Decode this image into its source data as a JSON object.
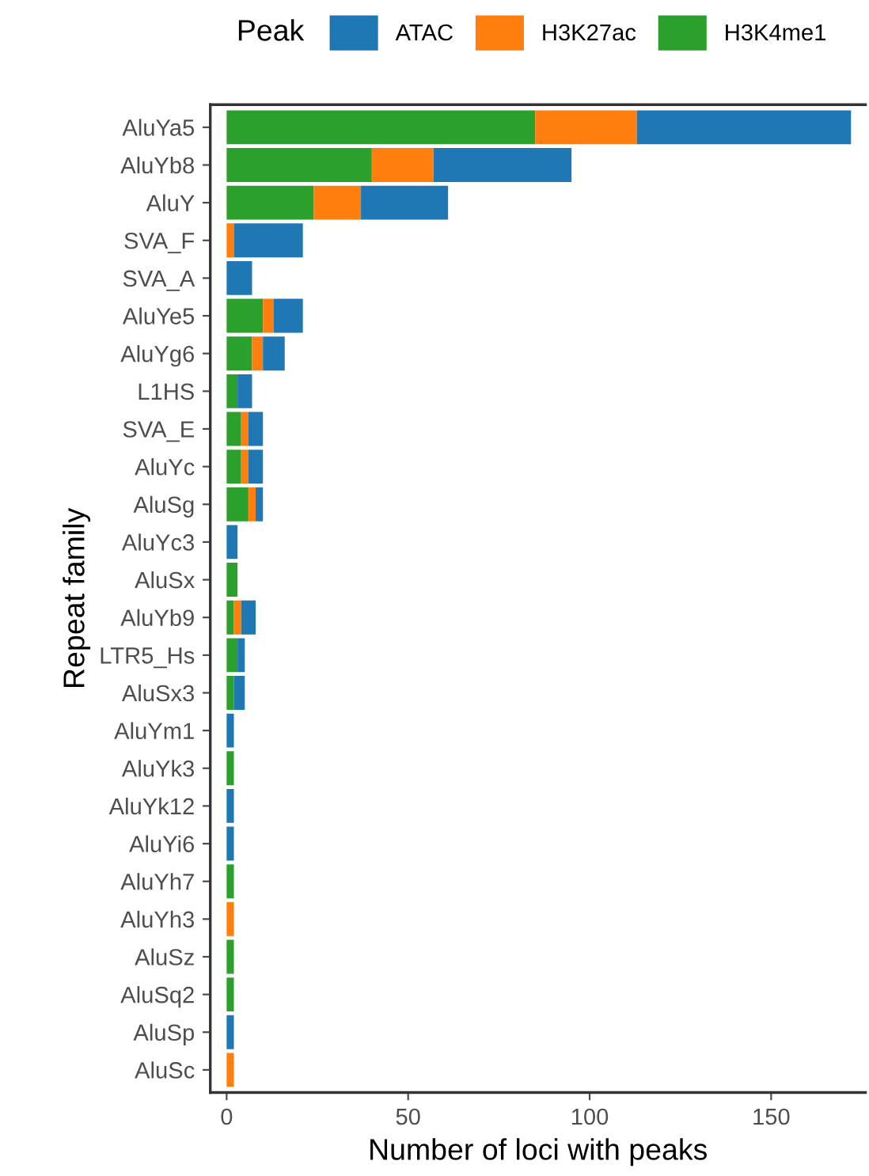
{
  "chart_data": {
    "type": "bar",
    "orientation": "horizontal",
    "stacked": true,
    "xlabel": "Number of loci with peaks",
    "ylabel": "Repeat family",
    "legend_title": "Peak",
    "legend": "top",
    "grid": false,
    "categories": [
      "AluYa5",
      "AluYb8",
      "AluY",
      "SVA_F",
      "SVA_A",
      "AluYe5",
      "AluYg6",
      "L1HS",
      "SVA_E",
      "AluYc",
      "AluSg",
      "AluYc3",
      "AluSx",
      "AluYb9",
      "LTR5_Hs",
      "AluSx3",
      "AluYm1",
      "AluYk3",
      "AluYk12",
      "AluYi6",
      "AluYh7",
      "AluYh3",
      "AluSz",
      "AluSq2",
      "AluSp",
      "AluSc"
    ],
    "series": [
      {
        "name": "H3K4me1",
        "color": "#2ca02c",
        "values": [
          85,
          40,
          24,
          0,
          0,
          10,
          7,
          3,
          4,
          4,
          6,
          0,
          3,
          2,
          3,
          2,
          0,
          2,
          0,
          0,
          2,
          0,
          2,
          2,
          0,
          0
        ]
      },
      {
        "name": "H3K27ac",
        "color": "#ff7f0e",
        "values": [
          28,
          17,
          13,
          2,
          0,
          3,
          3,
          0,
          2,
          2,
          2,
          0,
          0,
          2,
          0,
          0,
          0,
          0,
          0,
          0,
          0,
          2,
          0,
          0,
          0,
          2
        ]
      },
      {
        "name": "ATAC",
        "color": "#1f77b4",
        "values": [
          59,
          38,
          24,
          19,
          7,
          8,
          6,
          4,
          4,
          4,
          2,
          3,
          0,
          4,
          2,
          3,
          2,
          0,
          2,
          2,
          0,
          0,
          0,
          0,
          2,
          0
        ]
      }
    ],
    "xlim": [
      -4.5,
      176
    ],
    "xticks": [
      0,
      50,
      100,
      150
    ]
  }
}
